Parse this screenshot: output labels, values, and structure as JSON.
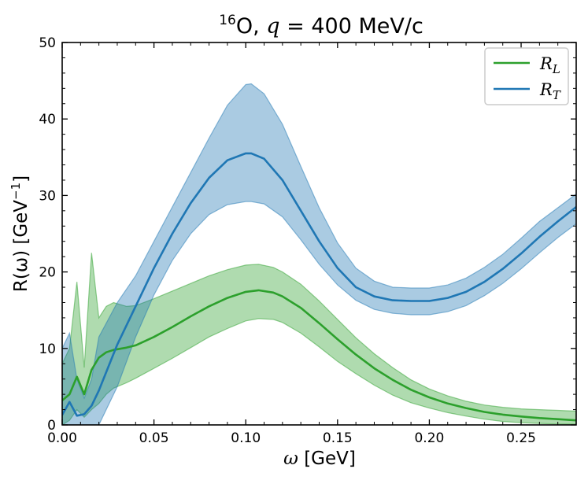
{
  "chart_data": {
    "type": "line",
    "title": {
      "sup": "16",
      "nucleus": "O, ",
      "var": "q",
      "rest": " = 400 MeV/c"
    },
    "xlabel": {
      "var": "ω",
      "unit": "  [GeV]"
    },
    "ylabel": {
      "text": "R(ω) [GeV",
      "sup": "−1",
      "close": "]"
    },
    "xlim": [
      0,
      0.28
    ],
    "ylim": [
      0,
      50
    ],
    "x_ticks": [
      0.0,
      0.05,
      0.1,
      0.15,
      0.2,
      0.25
    ],
    "x_tick_labels": [
      "0.00",
      "0.05",
      "0.10",
      "0.15",
      "0.20",
      "0.25"
    ],
    "y_ticks": [
      0,
      10,
      20,
      30,
      40,
      50
    ],
    "y_tick_labels": [
      "0",
      "10",
      "20",
      "30",
      "40",
      "50"
    ],
    "legend_position": "top-right",
    "series": [
      {
        "name": "R",
        "subscript": "L",
        "color": "#2ca02c",
        "band_color": "#2ca02c",
        "x": [
          0.0,
          0.004,
          0.008,
          0.012,
          0.016,
          0.02,
          0.024,
          0.028,
          0.035,
          0.04,
          0.05,
          0.06,
          0.07,
          0.08,
          0.09,
          0.1,
          0.107,
          0.115,
          0.12,
          0.13,
          0.14,
          0.15,
          0.16,
          0.17,
          0.18,
          0.19,
          0.2,
          0.21,
          0.22,
          0.23,
          0.24,
          0.25,
          0.26,
          0.27,
          0.28
        ],
        "y": [
          3.2,
          4.0,
          6.3,
          4.0,
          7.2,
          8.8,
          9.5,
          9.8,
          10.1,
          10.4,
          11.5,
          12.8,
          14.2,
          15.5,
          16.6,
          17.4,
          17.6,
          17.3,
          16.8,
          15.3,
          13.3,
          11.2,
          9.2,
          7.4,
          5.9,
          4.6,
          3.6,
          2.8,
          2.2,
          1.7,
          1.35,
          1.1,
          0.9,
          0.75,
          0.6
        ],
        "upper": [
          8.0,
          10.0,
          18.7,
          7.5,
          22.5,
          14.0,
          15.5,
          16.0,
          15.5,
          15.6,
          16.5,
          17.5,
          18.5,
          19.5,
          20.3,
          20.9,
          21.0,
          20.6,
          20.0,
          18.4,
          16.2,
          13.8,
          11.4,
          9.3,
          7.5,
          5.9,
          4.7,
          3.8,
          3.1,
          2.6,
          2.3,
          2.1,
          2.0,
          1.9,
          1.8
        ],
        "lower": [
          0.0,
          0.6,
          2.0,
          1.0,
          2.0,
          2.8,
          4.0,
          4.8,
          5.5,
          6.1,
          7.4,
          8.7,
          10.1,
          11.5,
          12.6,
          13.6,
          13.9,
          13.8,
          13.4,
          12.0,
          10.2,
          8.3,
          6.7,
          5.2,
          3.9,
          2.9,
          2.2,
          1.6,
          1.15,
          0.75,
          0.45,
          0.3,
          0.2,
          0.12,
          0.1
        ]
      },
      {
        "name": "R",
        "subscript": "T",
        "color": "#1f77b4",
        "band_color": "#1f77b4",
        "x": [
          0.0,
          0.004,
          0.008,
          0.012,
          0.016,
          0.02,
          0.03,
          0.04,
          0.05,
          0.06,
          0.07,
          0.08,
          0.09,
          0.1,
          0.103,
          0.11,
          0.12,
          0.13,
          0.14,
          0.15,
          0.16,
          0.17,
          0.18,
          0.19,
          0.2,
          0.21,
          0.22,
          0.23,
          0.24,
          0.25,
          0.26,
          0.27,
          0.28
        ],
        "y": [
          1.3,
          3.0,
          1.2,
          1.4,
          2.5,
          4.5,
          10.5,
          15.5,
          20.5,
          25.0,
          29.0,
          32.3,
          34.6,
          35.5,
          35.5,
          34.8,
          32.0,
          28.0,
          24.0,
          20.5,
          18.0,
          16.8,
          16.3,
          16.2,
          16.2,
          16.6,
          17.4,
          18.7,
          20.4,
          22.4,
          24.6,
          26.6,
          28.5
        ],
        "upper": [
          10.0,
          12.0,
          6.0,
          3.5,
          6.0,
          11.5,
          16.0,
          19.5,
          24.0,
          28.5,
          33.0,
          37.5,
          41.8,
          44.5,
          44.6,
          43.3,
          39.3,
          33.8,
          28.4,
          23.8,
          20.5,
          18.8,
          18.0,
          17.9,
          17.9,
          18.3,
          19.2,
          20.6,
          22.3,
          24.4,
          26.6,
          28.4,
          30.2
        ],
        "lower": [
          0.0,
          0.0,
          0.0,
          0.0,
          0.0,
          0.0,
          5.0,
          11.5,
          17.0,
          21.5,
          25.0,
          27.5,
          28.8,
          29.2,
          29.2,
          28.9,
          27.2,
          24.2,
          21.0,
          18.3,
          16.3,
          15.1,
          14.6,
          14.4,
          14.4,
          14.8,
          15.6,
          16.9,
          18.5,
          20.4,
          22.5,
          24.5,
          26.3
        ]
      }
    ]
  }
}
